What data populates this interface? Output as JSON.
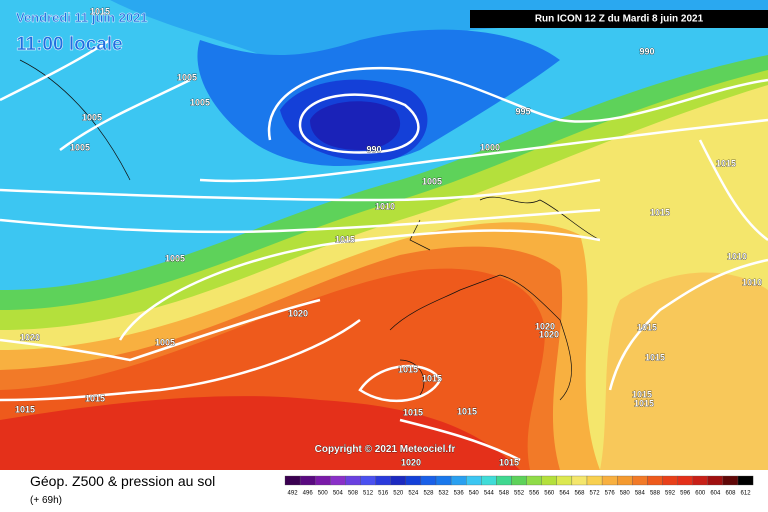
{
  "header": {
    "valid_date": "Vendredi 11 juin 2021",
    "local_time": "11:00 locale",
    "run": "Run ICON 12 Z du Mardi 8 juin 2021",
    "copyright": "Copyright © 2021 Meteociel.fr"
  },
  "footer": {
    "title": "Géop. Z500 & pression au sol",
    "lead": "(+ 69h)"
  },
  "isobar_labels": [
    1015,
    1005,
    1005,
    1005,
    1005,
    990,
    995,
    990,
    1000,
    1005,
    1010,
    1015,
    1005,
    1020,
    1005,
    1020,
    1015,
    1015,
    1015,
    1015,
    1010,
    1010,
    1020,
    1020,
    1015,
    1015,
    1015,
    1015,
    1015,
    1015,
    1015,
    1015,
    1015,
    1020
  ],
  "legend": {
    "labels": [
      492,
      496,
      500,
      504,
      508,
      512,
      516,
      520,
      524,
      528,
      532,
      536,
      540,
      544,
      548,
      552,
      556,
      560,
      564,
      568,
      572,
      576,
      580,
      584,
      588,
      592,
      596,
      600,
      604,
      608,
      612
    ]
  }
}
